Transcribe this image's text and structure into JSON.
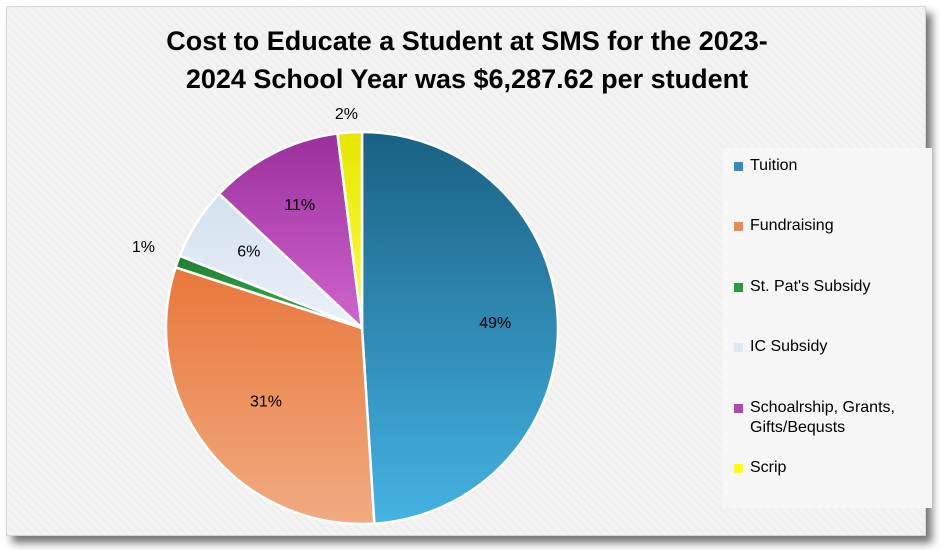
{
  "chart_data": {
    "type": "pie",
    "title_line1": "Cost to Educate a Student at SMS for the 2023-",
    "title_line2": "2024 School Year was $6,287.62 per student",
    "slices": [
      {
        "label": "Tuition",
        "value": 49,
        "pct_label": "49%",
        "color": "#2f8fc4",
        "color_light": "#45b3e3",
        "color_dark": "#1a6184"
      },
      {
        "label": "Fundraising",
        "value": 31,
        "pct_label": "31%",
        "color": "#ec8a53",
        "color_light": "#f1ab82",
        "color_dark": "#e9773a"
      },
      {
        "label": "St. Pat's Subsidy",
        "value": 1,
        "pct_label": "1%",
        "color": "#2a9c3e",
        "color_light": "#3bb24f",
        "color_dark": "#1f7d30"
      },
      {
        "label": "IC Subsidy",
        "value": 6,
        "pct_label": "6%",
        "color": "#dce8f4",
        "color_light": "#eaf1f9",
        "color_dark": "#d3e1ef"
      },
      {
        "label": "Schoalrship, Grants, Gifts/Bequsts",
        "value": 11,
        "pct_label": "11%",
        "color": "#b545b5",
        "color_light": "#d065d0",
        "color_dark": "#9b2f9b"
      },
      {
        "label": "Scrip",
        "value": 2,
        "pct_label": "2%",
        "color": "#ffff00",
        "color_light": "#ffff40",
        "color_dark": "#e6e600"
      }
    ],
    "legend": {
      "position": "right",
      "items": [
        "Tuition",
        "Fundraising",
        "St. Pat's Subsidy",
        "IC Subsidy",
        "Schoalrship, Grants,",
        "Gifts/Bequsts",
        "Scrip"
      ]
    }
  }
}
